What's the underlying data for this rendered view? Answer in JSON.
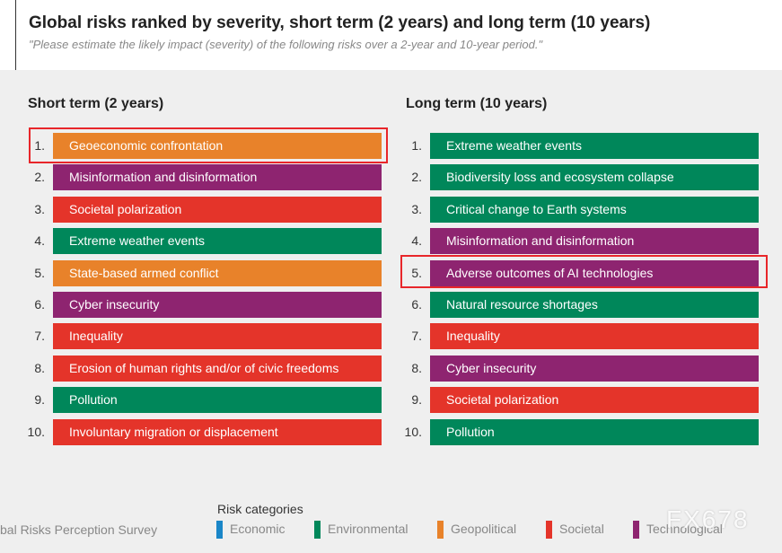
{
  "header": {
    "title": "Global risks ranked by severity, short term (2 years) and long term (10 years)",
    "subtitle": "\"Please estimate the likely impact (severity) of the following risks over a 2-year and 10-year period.\""
  },
  "columns": [
    {
      "heading": "Short term (2 years)",
      "highlight": 0,
      "items": [
        {
          "rank": "1.",
          "label": "Geoeconomic confrontation",
          "category": 2
        },
        {
          "rank": "2.",
          "label": "Misinformation and disinformation",
          "category": 4
        },
        {
          "rank": "3.",
          "label": "Societal polarization",
          "category": 3
        },
        {
          "rank": "4.",
          "label": "Extreme weather events",
          "category": 1
        },
        {
          "rank": "5.",
          "label": "State-based armed conflict",
          "category": 2
        },
        {
          "rank": "6.",
          "label": "Cyber insecurity",
          "category": 4
        },
        {
          "rank": "7.",
          "label": "Inequality",
          "category": 3
        },
        {
          "rank": "8.",
          "label": "Erosion of human rights and/or of civic freedoms",
          "category": 3
        },
        {
          "rank": "9.",
          "label": "Pollution",
          "category": 1
        },
        {
          "rank": "10.",
          "label": "Involuntary migration or displacement",
          "category": 3
        }
      ]
    },
    {
      "heading": "Long term (10 years)",
      "highlight": 4,
      "items": [
        {
          "rank": "1.",
          "label": "Extreme weather events",
          "category": 1
        },
        {
          "rank": "2.",
          "label": "Biodiversity loss and ecosystem collapse",
          "category": 1
        },
        {
          "rank": "3.",
          "label": "Critical change to Earth systems",
          "category": 1
        },
        {
          "rank": "4.",
          "label": "Misinformation and disinformation",
          "category": 4
        },
        {
          "rank": "5.",
          "label": "Adverse outcomes of AI technologies",
          "category": 4
        },
        {
          "rank": "6.",
          "label": "Natural resource shortages",
          "category": 1
        },
        {
          "rank": "7.",
          "label": "Inequality",
          "category": 3
        },
        {
          "rank": "8.",
          "label": "Cyber insecurity",
          "category": 4
        },
        {
          "rank": "9.",
          "label": "Societal polarization",
          "category": 3
        },
        {
          "rank": "10.",
          "label": "Pollution",
          "category": 1
        }
      ]
    }
  ],
  "legend": {
    "title": "Risk categories",
    "items": [
      {
        "name": "Economic",
        "color": "#1a86c8"
      },
      {
        "name": "Environmental",
        "color": "#00875a"
      },
      {
        "name": "Geopolitical",
        "color": "#e8822a"
      },
      {
        "name": "Societal",
        "color": "#e4342a"
      },
      {
        "name": "Technological",
        "color": "#8e2470"
      }
    ]
  },
  "footer": {
    "source": "bal Risks Perception Survey",
    "watermark": "FX678"
  }
}
